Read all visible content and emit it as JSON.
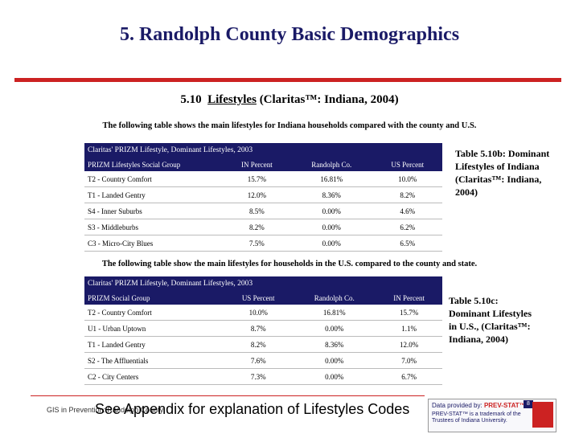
{
  "title": "5.  Randolph County Basic Demographics",
  "subtitle": {
    "number": "5.10",
    "underlined": "Lifestyles",
    "rest": " (Claritas™: Indiana, 2004)"
  },
  "intro1": "The following table shows the main lifestyles for Indiana households compared with the county and U.S.",
  "table1": {
    "caption": "Claritas' PRIZM Lifestyle, Dominant Lifestyles, 2003",
    "headers": [
      "PRIZM Lifestyles Social Group",
      "IN Percent",
      "Randolph Co.",
      "US Percent"
    ],
    "rows": [
      [
        "T2 - Country Comfort",
        "15.7%",
        "16.81%",
        "10.0%"
      ],
      [
        "T1 - Landed Gentry",
        "12.0%",
        "8.36%",
        "8.2%"
      ],
      [
        "S4 - Inner Suburbs",
        "8.5%",
        "0.00%",
        "4.6%"
      ],
      [
        "S3 - Middleburbs",
        "8.2%",
        "0.00%",
        "6.2%"
      ],
      [
        "C3 - Micro-City Blues",
        "7.5%",
        "0.00%",
        "6.5%"
      ]
    ],
    "side_label": "Table 5.10b: Dominant Lifestyles of Indiana (Claritas™: Indiana, 2004)"
  },
  "intro2": "The following table show the main lifestyles for households in the U.S. compared to the county and state.",
  "table2": {
    "caption": "Claritas' PRIZM Lifestyle, Dominant Lifestyles, 2003",
    "headers": [
      "PRIZM Social Group",
      "US Percent",
      "Randolph Co.",
      "IN Percent"
    ],
    "rows": [
      [
        "T2 - Country Comfort",
        "10.0%",
        "16.81%",
        "15.7%"
      ],
      [
        "U1 - Urban Uptown",
        "8.7%",
        "0.00%",
        "1.1%"
      ],
      [
        "T1 - Landed Gentry",
        "8.2%",
        "8.36%",
        "12.0%"
      ],
      [
        "S2 - The Affluentials",
        "7.6%",
        "0.00%",
        "7.0%"
      ],
      [
        "C2 - City Centers",
        "7.3%",
        "0.00%",
        "6.7%"
      ]
    ],
    "side_label": "Table 5.10c: Dominant Lifestyles in U.S., (Claritas™: Indiana, 2004)"
  },
  "footer": {
    "small": "GIS in Prevention: Randolph County",
    "big": "See Appendix for explanation of Lifestyles Codes",
    "logo_line1_prefix": "Data provided by: ",
    "logo_line1_brand": "PREV-STAT™",
    "logo_line2": "PREV-STAT™ is a trademark of the Trustees of Indiana University.",
    "page_number": "8"
  }
}
